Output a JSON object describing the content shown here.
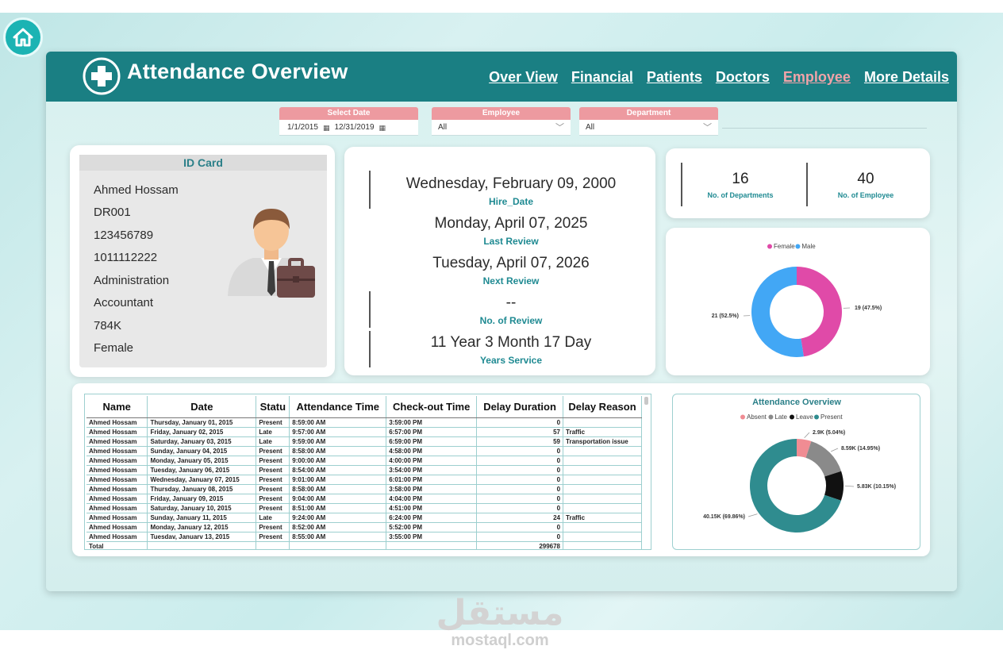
{
  "header": {
    "title": "Attendance Overview",
    "nav": [
      "Over View",
      "Financial",
      "Patients",
      "Doctors",
      "Employee",
      "More Details"
    ],
    "active_nav": "Employee"
  },
  "filters": {
    "date": {
      "label": "Select Date",
      "start": "1/1/2015",
      "end": "12/31/2019"
    },
    "employee": {
      "label": "Employee",
      "value": "All"
    },
    "department": {
      "label": "Department",
      "value": "All"
    }
  },
  "id_card": {
    "title": "ID Card",
    "fields": [
      "Ahmed Hossam",
      "DR001",
      "123456789",
      "1011112222",
      "Administration",
      "Accountant",
      "784K",
      "Female"
    ]
  },
  "dates": [
    {
      "value": "Wednesday, February 09, 2000",
      "label": "Hire_Date"
    },
    {
      "value": "Monday, April 07, 2025",
      "label": "Last Review"
    },
    {
      "value": "Tuesday, April 07, 2026",
      "label": "Next Review"
    },
    {
      "value": "--",
      "label": "No. of Review"
    },
    {
      "value": "11 Year 3 Month 17 Day",
      "label": "Years Service"
    }
  ],
  "kpis": [
    {
      "value": "16",
      "label": "No. of Departments"
    },
    {
      "value": "40",
      "label": "No. of Employee"
    }
  ],
  "gender_chart": {
    "type": "pie",
    "legend": [
      "Female",
      "Male"
    ],
    "colors": [
      "#e04aa8",
      "#42a7f5"
    ],
    "values": [
      19,
      21
    ],
    "labels": [
      "19 (47.5%)",
      "21 (52.5%)"
    ]
  },
  "table": {
    "columns": [
      "Name",
      "Date",
      "Statu",
      "Attendance Time",
      "Check-out Time",
      "Delay Duration",
      "Delay Reason"
    ],
    "rows": [
      [
        "Ahmed Hossam",
        "Thursday, January 01, 2015",
        "Present",
        "8:59:00 AM",
        "3:59:00 PM",
        "0",
        ""
      ],
      [
        "Ahmed Hossam",
        "Friday, January 02, 2015",
        "Late",
        "9:57:00 AM",
        "6:57:00 PM",
        "57",
        "Traffic"
      ],
      [
        "Ahmed Hossam",
        "Saturday, January 03, 2015",
        "Late",
        "9:59:00 AM",
        "6:59:00 PM",
        "59",
        "Transportation issue"
      ],
      [
        "Ahmed Hossam",
        "Sunday, January 04, 2015",
        "Present",
        "8:58:00 AM",
        "4:58:00 PM",
        "0",
        ""
      ],
      [
        "Ahmed Hossam",
        "Monday, January 05, 2015",
        "Present",
        "9:00:00 AM",
        "4:00:00 PM",
        "0",
        ""
      ],
      [
        "Ahmed Hossam",
        "Tuesday, January 06, 2015",
        "Present",
        "8:54:00 AM",
        "3:54:00 PM",
        "0",
        ""
      ],
      [
        "Ahmed Hossam",
        "Wednesday, January 07, 2015",
        "Present",
        "9:01:00 AM",
        "6:01:00 PM",
        "0",
        ""
      ],
      [
        "Ahmed Hossam",
        "Thursday, January 08, 2015",
        "Present",
        "8:58:00 AM",
        "3:58:00 PM",
        "0",
        ""
      ],
      [
        "Ahmed Hossam",
        "Friday, January 09, 2015",
        "Present",
        "9:04:00 AM",
        "4:04:00 PM",
        "0",
        ""
      ],
      [
        "Ahmed Hossam",
        "Saturday, January 10, 2015",
        "Present",
        "8:51:00 AM",
        "4:51:00 PM",
        "0",
        ""
      ],
      [
        "Ahmed Hossam",
        "Sunday, January 11, 2015",
        "Late",
        "9:24:00 AM",
        "6:24:00 PM",
        "24",
        "Traffic"
      ],
      [
        "Ahmed Hossam",
        "Monday, January 12, 2015",
        "Present",
        "8:52:00 AM",
        "5:52:00 PM",
        "0",
        ""
      ],
      [
        "Ahmed Hossam",
        "Tuesdav, Januarv 13, 2015",
        "Present",
        "8:55:00 AM",
        "3:55:00 PM",
        "0",
        ""
      ]
    ],
    "total_label": "Total",
    "total_delay": "299678"
  },
  "attendance_chart": {
    "type": "pie",
    "title": "Attendance Overview",
    "legend": [
      "Absent",
      "Late",
      "Leave",
      "Present"
    ],
    "colors": [
      "#f08c93",
      "#8a8a8a",
      "#111111",
      "#2f8c8f"
    ],
    "values": [
      2.9,
      8.59,
      5.83,
      40.15
    ],
    "labels": [
      "2.9K (5.04%)",
      "8.59K (14.95%)",
      "5.83K (10.15%)",
      "40.15K (69.86%)"
    ]
  },
  "watermark": {
    "arabic": "مستقل",
    "latin": "mostaql.com"
  }
}
